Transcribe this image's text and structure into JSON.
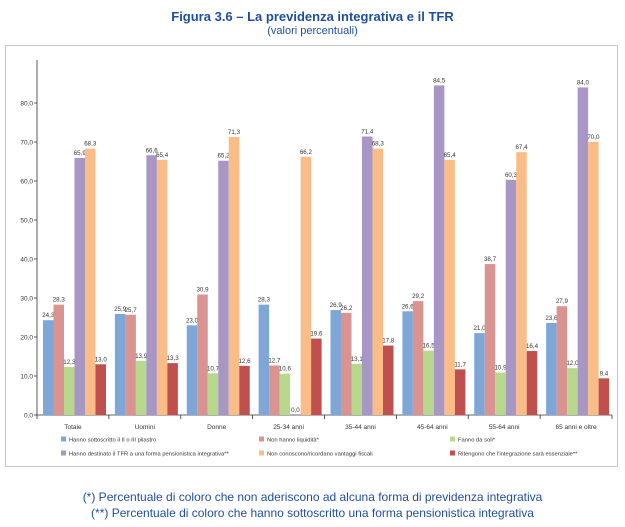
{
  "header": {
    "title": "Figura 3.6 – La previdenza integrativa e il TFR",
    "subtitle": "(valori percentuali)"
  },
  "footnotes": [
    "(*) Percentuale di coloro che non aderiscono ad alcuna forma di previdenza integrativa",
    "(**) Percentuale di coloro che hanno sottoscritto una forma pensionistica integrativa"
  ],
  "chart_data": {
    "type": "bar",
    "title": "Figura 3.6 – La previdenza integrativa e il TFR",
    "subtitle": "(valori percentuali)",
    "categories": [
      "Totale",
      "Uomini",
      "Donne",
      "25-34 anni",
      "35-44 anni",
      "45-64 anni",
      "55-64 anni",
      "65 anni e oltre"
    ],
    "ylim": [
      0,
      90
    ],
    "yticks": [
      "0,0",
      "10,0",
      "20,0",
      "30,0",
      "40,0",
      "50,0",
      "60,0",
      "70,0",
      "80,0"
    ],
    "grid": false,
    "legend_position": "bottom",
    "series": [
      {
        "name": "Hanno sottoscritto il II o III pilastro",
        "color": "#7ea7d8",
        "values": [
          24.3,
          25.9,
          23.0,
          28.3,
          26.9,
          26.6,
          21.0,
          23.6
        ],
        "labels": [
          "24,3",
          "25,9",
          "23,0",
          "28,3",
          "26,9",
          "26,6",
          "21,0",
          "23,6"
        ]
      },
      {
        "name": "Non hanno liquidità*",
        "color": "#d99391",
        "values": [
          28.3,
          25.7,
          30.9,
          12.7,
          26.2,
          29.2,
          38.7,
          27.9
        ],
        "labels": [
          "28,3",
          "25,7",
          "30,9",
          "12,7",
          "26,2",
          "29,2",
          "38,7",
          "27,9"
        ]
      },
      {
        "name": "Fanno da soli*",
        "color": "#b8d88e",
        "values": [
          12.3,
          13.9,
          10.7,
          10.6,
          13.1,
          16.5,
          10.9,
          12.0
        ],
        "labels": [
          "12,3",
          "13,9",
          "10,7",
          "10,6",
          "13,1",
          "16,5",
          "10,9",
          "12,0"
        ]
      },
      {
        "name": "Hanno destinato il TFR a una forma pensionistica integrativa**",
        "color": "#a896c4",
        "values": [
          65.9,
          66.6,
          65.2,
          0.0,
          71.4,
          84.5,
          60.3,
          84.0
        ],
        "labels": [
          "65,9",
          "66,6",
          "65,2",
          "0,0",
          "71,4",
          "84,5",
          "60,3",
          "84,0"
        ]
      },
      {
        "name": "Non conoscono/ricordano vantaggi fiscali",
        "color": "#fbbd88",
        "values": [
          68.3,
          65.4,
          71.3,
          66.2,
          68.3,
          65.4,
          67.4,
          70.0
        ],
        "labels": [
          "68,3",
          "65,4",
          "71,3",
          "66,2",
          "68,3",
          "65,4",
          "67,4",
          "70,0"
        ]
      },
      {
        "name": "Ritengono che l'integrazione sarà essenziale**",
        "color": "#c0504d",
        "values": [
          13.0,
          13.3,
          12.6,
          19.6,
          17.8,
          11.7,
          16.4,
          9.4
        ],
        "labels": [
          "13,0",
          "13,3",
          "12,6",
          "19,6",
          "17,8",
          "11,7",
          "16,4",
          "9,4"
        ]
      }
    ]
  }
}
